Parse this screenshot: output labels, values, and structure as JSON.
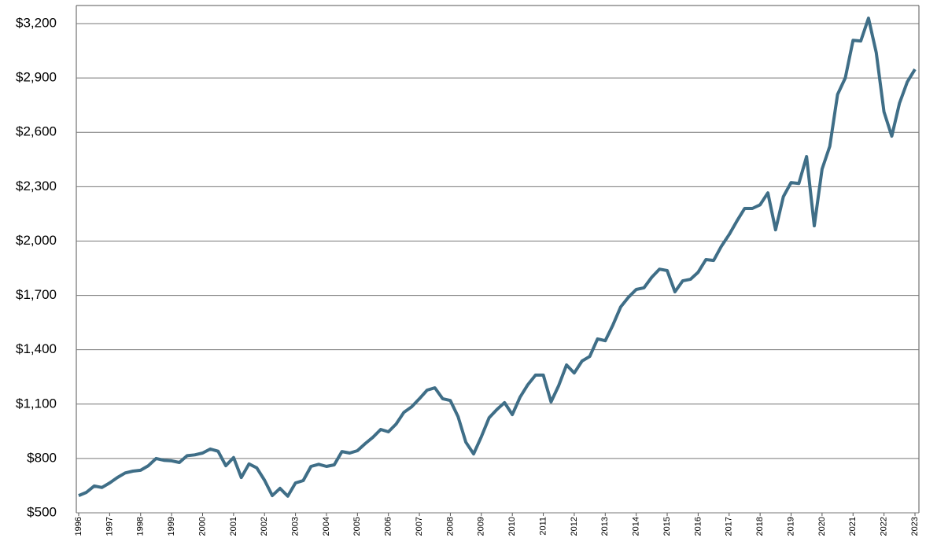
{
  "chart_data": {
    "type": "line",
    "x": [
      1996,
      1996.25,
      1996.5,
      1996.75,
      1997,
      1997.25,
      1997.5,
      1997.75,
      1998,
      1998.25,
      1998.5,
      1998.75,
      1999,
      1999.25,
      1999.5,
      1999.75,
      2000,
      2000.25,
      2000.5,
      2000.75,
      2001,
      2001.25,
      2001.5,
      2001.75,
      2002,
      2002.25,
      2002.5,
      2002.75,
      2003,
      2003.25,
      2003.5,
      2003.75,
      2004,
      2004.25,
      2004.5,
      2004.75,
      2005,
      2005.25,
      2005.5,
      2005.75,
      2006,
      2006.25,
      2006.5,
      2006.75,
      2007,
      2007.25,
      2007.5,
      2007.75,
      2008,
      2008.25,
      2008.5,
      2008.75,
      2009,
      2009.25,
      2009.5,
      2009.75,
      2010,
      2010.25,
      2010.5,
      2010.75,
      2011,
      2011.25,
      2011.5,
      2011.75,
      2012,
      2012.25,
      2012.5,
      2012.75,
      2013,
      2013.25,
      2013.5,
      2013.75,
      2014,
      2014.25,
      2014.5,
      2014.75,
      2015,
      2015.25,
      2015.5,
      2015.75,
      2016,
      2016.25,
      2016.5,
      2016.75,
      2017,
      2017.25,
      2017.5,
      2017.75,
      2018,
      2018.25,
      2018.5,
      2018.75,
      2019,
      2019.25,
      2019.5,
      2019.75,
      2020,
      2020.25,
      2020.5,
      2020.75,
      2021,
      2021.25,
      2021.5,
      2021.75,
      2022,
      2022.25,
      2022.5,
      2022.75,
      2023
    ],
    "values": [
      595,
      613,
      648,
      640,
      665,
      695,
      720,
      730,
      735,
      760,
      800,
      790,
      787,
      778,
      815,
      820,
      830,
      852,
      840,
      760,
      805,
      695,
      770,
      748,
      680,
      595,
      635,
      592,
      665,
      678,
      756,
      768,
      756,
      765,
      838,
      830,
      843,
      882,
      917,
      960,
      947,
      990,
      1055,
      1085,
      1130,
      1177,
      1190,
      1130,
      1120,
      1030,
      890,
      825,
      920,
      1025,
      1070,
      1108,
      1042,
      1138,
      1207,
      1260,
      1260,
      1112,
      1203,
      1316,
      1272,
      1338,
      1363,
      1460,
      1450,
      1537,
      1637,
      1690,
      1733,
      1742,
      1800,
      1845,
      1837,
      1720,
      1780,
      1789,
      1828,
      1898,
      1893,
      1971,
      2036,
      2110,
      2180,
      2180,
      2200,
      2266,
      2062,
      2245,
      2323,
      2318,
      2466,
      2084,
      2397,
      2523,
      2809,
      2900,
      3108,
      3104,
      3230,
      3039,
      2713,
      2579,
      2761,
      2878,
      2948
    ],
    "color": "#3f6e87",
    "xlim": [
      1996,
      2023
    ],
    "xticks": [
      1996,
      1997,
      1998,
      1999,
      2000,
      2001,
      2002,
      2003,
      2004,
      2005,
      2006,
      2007,
      2008,
      2009,
      2010,
      2011,
      2012,
      2013,
      2014,
      2015,
      2016,
      2017,
      2018,
      2019,
      2020,
      2021,
      2022,
      2023
    ],
    "ylim": [
      500,
      3300
    ],
    "yticks": [
      {
        "value": 500,
        "label": "$500"
      },
      {
        "value": 800,
        "label": "$800"
      },
      {
        "value": 1100,
        "label": "$1,100"
      },
      {
        "value": 1400,
        "label": "$1,400"
      },
      {
        "value": 1700,
        "label": "$1,700"
      },
      {
        "value": 2000,
        "label": "$2,000"
      },
      {
        "value": 2300,
        "label": "$2,300"
      },
      {
        "value": 2600,
        "label": "$2,600"
      },
      {
        "value": 2900,
        "label": "$2,900"
      },
      {
        "value": 3200,
        "label": "$3,200"
      }
    ],
    "grid": true
  }
}
